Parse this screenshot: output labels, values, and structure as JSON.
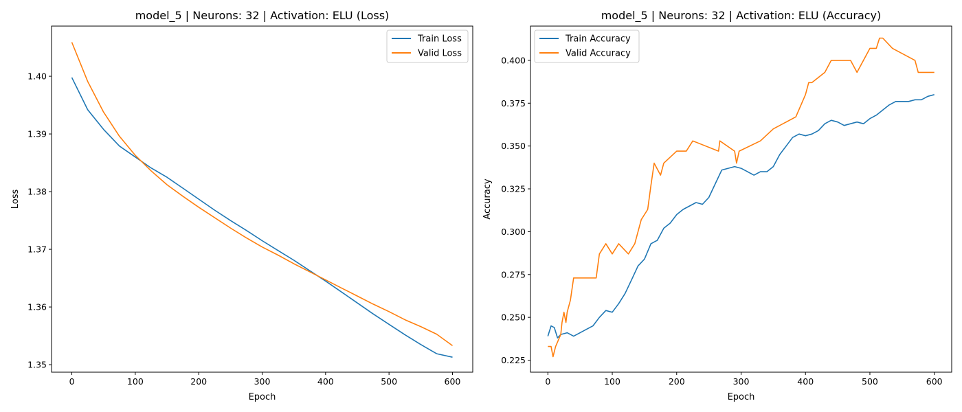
{
  "figure": {
    "charts": [
      {
        "title": "model_5 | Neurons: 32 | Activation: ELU (Loss)",
        "xlabel": "Epoch",
        "ylabel": "Loss",
        "legend": {
          "loc": "upper right",
          "entries": [
            "Train Loss",
            "Valid Loss"
          ]
        },
        "xticks": [
          "0",
          "100",
          "200",
          "300",
          "400",
          "500",
          "600"
        ],
        "yticks": [
          "1.35",
          "1.36",
          "1.37",
          "1.38",
          "1.39",
          "1.40"
        ]
      },
      {
        "title": "model_5 | Neurons: 32 | Activation: ELU (Accuracy)",
        "xlabel": "Epoch",
        "ylabel": "Accuracy",
        "legend": {
          "loc": "upper left",
          "entries": [
            "Train Accuracy",
            "Valid Accuracy"
          ]
        },
        "xticks": [
          "0",
          "100",
          "200",
          "300",
          "400",
          "500",
          "600"
        ],
        "yticks": [
          "0.225",
          "0.250",
          "0.275",
          "0.300",
          "0.325",
          "0.350",
          "0.375",
          "0.400"
        ]
      }
    ]
  },
  "chart_data": [
    {
      "type": "line",
      "title": "model_5 | Neurons: 32 | Activation: ELU (Loss)",
      "xlabel": "Epoch",
      "ylabel": "Loss",
      "xlim": [
        -32,
        632
      ],
      "ylim": [
        1.3487,
        1.4087
      ],
      "xticks": [
        0,
        100,
        200,
        300,
        400,
        500,
        600
      ],
      "yticks": [
        1.35,
        1.36,
        1.37,
        1.38,
        1.39,
        1.4
      ],
      "grid": false,
      "legend": "upper right",
      "series": [
        {
          "name": "Train Loss",
          "color": "#1f77b4",
          "x": [
            0,
            25,
            50,
            75,
            100,
            125,
            150,
            175,
            200,
            225,
            250,
            275,
            300,
            325,
            350,
            375,
            400,
            425,
            450,
            475,
            500,
            525,
            550,
            575,
            600
          ],
          "y": [
            1.3998,
            1.3942,
            1.3908,
            1.3879,
            1.386,
            1.3841,
            1.3825,
            1.3806,
            1.3787,
            1.3768,
            1.375,
            1.3733,
            1.3715,
            1.3698,
            1.3681,
            1.3663,
            1.3645,
            1.3626,
            1.3607,
            1.3588,
            1.357,
            1.3552,
            1.3535,
            1.3519,
            1.3513
          ]
        },
        {
          "name": "Valid Loss",
          "color": "#ff7f0e",
          "x": [
            0,
            25,
            50,
            75,
            100,
            125,
            150,
            175,
            200,
            225,
            250,
            275,
            300,
            325,
            350,
            375,
            400,
            425,
            450,
            475,
            500,
            525,
            550,
            575,
            600
          ],
          "y": [
            1.4059,
            1.3991,
            1.3938,
            1.3896,
            1.3863,
            1.3836,
            1.3812,
            1.3792,
            1.3773,
            1.3755,
            1.3737,
            1.372,
            1.3704,
            1.369,
            1.3675,
            1.3661,
            1.3647,
            1.3633,
            1.3619,
            1.3605,
            1.3592,
            1.3578,
            1.3566,
            1.3553,
            1.3533
          ]
        }
      ]
    },
    {
      "type": "line",
      "title": "model_5 | Neurons: 32 | Activation: ELU (Accuracy)",
      "xlabel": "Epoch",
      "ylabel": "Accuracy",
      "xlim": [
        -27,
        627
      ],
      "ylim": [
        0.218,
        0.42
      ],
      "xticks": [
        0,
        100,
        200,
        300,
        400,
        500,
        600
      ],
      "yticks": [
        0.225,
        0.25,
        0.275,
        0.3,
        0.325,
        0.35,
        0.375,
        0.4
      ],
      "grid": false,
      "legend": "upper left",
      "series": [
        {
          "name": "Train Accuracy",
          "color": "#1f77b4",
          "x": [
            0,
            5,
            10,
            15,
            20,
            30,
            40,
            50,
            60,
            70,
            80,
            90,
            100,
            110,
            120,
            130,
            140,
            150,
            160,
            170,
            180,
            190,
            200,
            210,
            220,
            230,
            240,
            250,
            260,
            270,
            280,
            290,
            300,
            310,
            320,
            330,
            340,
            350,
            360,
            370,
            380,
            390,
            400,
            410,
            420,
            430,
            440,
            450,
            460,
            470,
            480,
            490,
            500,
            510,
            520,
            530,
            540,
            550,
            560,
            570,
            580,
            590,
            600
          ],
          "y": [
            0.239,
            0.245,
            0.244,
            0.238,
            0.24,
            0.241,
            0.239,
            0.241,
            0.243,
            0.245,
            0.25,
            0.254,
            0.253,
            0.258,
            0.264,
            0.272,
            0.28,
            0.284,
            0.293,
            0.295,
            0.302,
            0.305,
            0.31,
            0.313,
            0.315,
            0.317,
            0.316,
            0.32,
            0.328,
            0.336,
            0.337,
            0.338,
            0.337,
            0.335,
            0.333,
            0.335,
            0.335,
            0.338,
            0.345,
            0.35,
            0.355,
            0.357,
            0.356,
            0.357,
            0.359,
            0.363,
            0.365,
            0.364,
            0.362,
            0.363,
            0.364,
            0.363,
            0.366,
            0.368,
            0.371,
            0.374,
            0.376,
            0.376,
            0.376,
            0.377,
            0.377,
            0.379,
            0.38
          ]
        },
        {
          "name": "Valid Accuracy",
          "color": "#ff7f0e",
          "x": [
            0,
            5,
            8,
            12,
            20,
            22,
            25,
            28,
            30,
            35,
            40,
            45,
            75,
            80,
            90,
            100,
            110,
            125,
            135,
            140,
            145,
            155,
            160,
            165,
            175,
            180,
            200,
            215,
            225,
            265,
            267,
            290,
            293,
            297,
            330,
            350,
            385,
            400,
            405,
            410,
            430,
            440,
            460,
            470,
            480,
            490,
            500,
            510,
            515,
            520,
            535,
            570,
            575,
            600
          ],
          "y": [
            0.233,
            0.233,
            0.227,
            0.233,
            0.24,
            0.247,
            0.253,
            0.247,
            0.253,
            0.26,
            0.273,
            0.273,
            0.273,
            0.287,
            0.293,
            0.287,
            0.293,
            0.287,
            0.293,
            0.3,
            0.307,
            0.313,
            0.327,
            0.34,
            0.333,
            0.34,
            0.347,
            0.347,
            0.353,
            0.347,
            0.353,
            0.347,
            0.34,
            0.347,
            0.353,
            0.36,
            0.367,
            0.38,
            0.387,
            0.387,
            0.393,
            0.4,
            0.4,
            0.4,
            0.393,
            0.4,
            0.407,
            0.407,
            0.413,
            0.413,
            0.407,
            0.4,
            0.393,
            0.393
          ]
        }
      ]
    }
  ]
}
